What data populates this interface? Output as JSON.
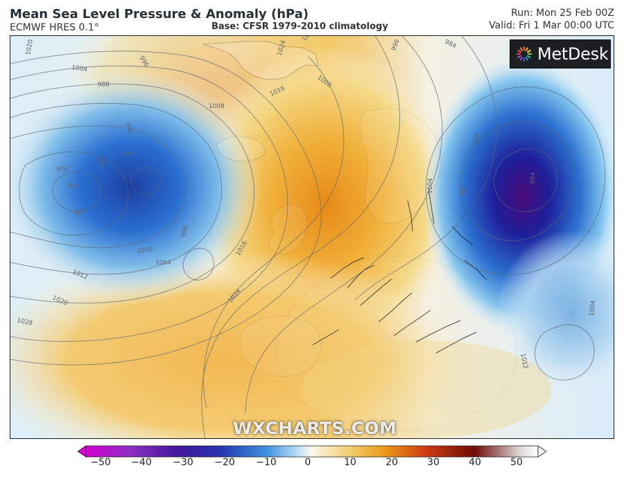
{
  "header": {
    "title": "Mean Sea Level Pressure & Anomaly (hPa)",
    "model": "ECMWF HRES 0.1°",
    "base": "Base: CFSR 1979-2010 climatology",
    "run": "Run: Mon 25 Feb 00Z",
    "valid": "Valid: Fri 1 Mar 00:00 UTC"
  },
  "branding": {
    "logo": "MetDesk",
    "watermark": "WXCHARTS.COM"
  },
  "map": {
    "region": "North Atlantic and Europe",
    "isobars": [
      {
        "label": "1020"
      },
      {
        "label": "996"
      },
      {
        "label": "1004"
      },
      {
        "label": "988"
      },
      {
        "label": "1012"
      },
      {
        "label": "1008"
      },
      {
        "label": "1016"
      },
      {
        "label": "1024"
      },
      {
        "label": "984"
      },
      {
        "label": "980"
      },
      {
        "label": "976"
      },
      {
        "label": "992"
      },
      {
        "label": "1000"
      },
      {
        "label": "1028"
      }
    ],
    "anomaly_color_scale": [
      "#d300d3",
      "#7a1aa1",
      "#2a3fb0",
      "#2f7ed8",
      "#8cc8f2",
      "#f7f3e8",
      "#f0b13b",
      "#d9531b",
      "#7a1608",
      "#2a0505"
    ]
  },
  "colorbar": {
    "ticks": [
      "−50",
      "−40",
      "−30",
      "−20",
      "−10",
      "0",
      "10",
      "20",
      "30",
      "40",
      "50"
    ],
    "min": -50,
    "max": 50
  }
}
